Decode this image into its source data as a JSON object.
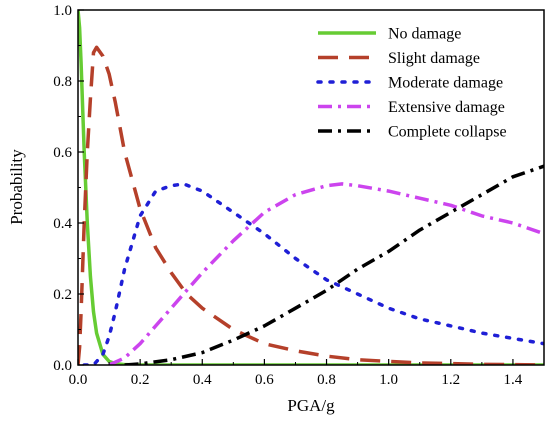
{
  "chart_data": {
    "type": "line",
    "xlabel": "PGA/g",
    "ylabel": "Probability",
    "xlim": [
      0.0,
      1.5
    ],
    "ylim": [
      0.0,
      1.0
    ],
    "xticks": [
      "0.0",
      "0.2",
      "0.4",
      "0.6",
      "0.8",
      "1.0",
      "1.2",
      "1.4"
    ],
    "xtick_values": [
      0.0,
      0.2,
      0.4,
      0.6,
      0.8,
      1.0,
      1.2,
      1.4
    ],
    "yticks": [
      "0.0",
      "0.2",
      "0.4",
      "0.6",
      "0.8",
      "1.0"
    ],
    "ytick_values": [
      0.0,
      0.2,
      0.4,
      0.6,
      0.8,
      1.0
    ],
    "grid": false,
    "legend_position": "top-right",
    "series": [
      {
        "name": "No damage",
        "color": "#66cc33",
        "style": "solid",
        "x": [
          0.0,
          0.005,
          0.01,
          0.02,
          0.03,
          0.04,
          0.05,
          0.06,
          0.08,
          0.1,
          0.12,
          0.15,
          0.2,
          0.3,
          0.5,
          1.0,
          1.5
        ],
        "y": [
          1.0,
          0.95,
          0.85,
          0.6,
          0.4,
          0.25,
          0.15,
          0.09,
          0.03,
          0.01,
          0.004,
          0.001,
          0.0,
          0.0,
          0.0,
          0.0,
          0.0
        ]
      },
      {
        "name": "Slight damage",
        "color": "#b5402a",
        "style": "long-dash",
        "x": [
          0.0,
          0.005,
          0.01,
          0.02,
          0.03,
          0.04,
          0.05,
          0.06,
          0.08,
          0.1,
          0.12,
          0.15,
          0.2,
          0.25,
          0.3,
          0.35,
          0.4,
          0.5,
          0.6,
          0.7,
          0.8,
          0.9,
          1.0,
          1.1,
          1.2,
          1.3,
          1.4,
          1.5
        ],
        "y": [
          0.0,
          0.05,
          0.15,
          0.4,
          0.6,
          0.75,
          0.88,
          0.895,
          0.87,
          0.82,
          0.74,
          0.6,
          0.44,
          0.33,
          0.26,
          0.2,
          0.16,
          0.1,
          0.06,
          0.04,
          0.025,
          0.015,
          0.01,
          0.006,
          0.004,
          0.002,
          0.001,
          0.0
        ]
      },
      {
        "name": "Moderate damage",
        "color": "#1f1fd6",
        "style": "dot",
        "x": [
          0.02,
          0.05,
          0.08,
          0.1,
          0.12,
          0.15,
          0.2,
          0.25,
          0.3,
          0.34,
          0.4,
          0.5,
          0.6,
          0.7,
          0.8,
          0.9,
          1.0,
          1.1,
          1.2,
          1.3,
          1.4,
          1.5
        ],
        "y": [
          0.0,
          0.0,
          0.03,
          0.08,
          0.15,
          0.27,
          0.42,
          0.49,
          0.505,
          0.51,
          0.49,
          0.43,
          0.37,
          0.3,
          0.24,
          0.2,
          0.16,
          0.13,
          0.11,
          0.09,
          0.075,
          0.06
        ]
      },
      {
        "name": "Extensive damage",
        "color": "#cc44ee",
        "style": "dash-dot",
        "x": [
          0.1,
          0.15,
          0.2,
          0.25,
          0.3,
          0.35,
          0.4,
          0.5,
          0.6,
          0.7,
          0.8,
          0.85,
          0.9,
          1.0,
          1.1,
          1.2,
          1.3,
          1.4,
          1.5
        ],
        "y": [
          0.0,
          0.02,
          0.06,
          0.11,
          0.16,
          0.21,
          0.26,
          0.35,
          0.43,
          0.48,
          0.505,
          0.51,
          0.505,
          0.49,
          0.47,
          0.45,
          0.42,
          0.4,
          0.37
        ]
      },
      {
        "name": "Complete collapse",
        "color": "#000000",
        "style": "dash-dot",
        "x": [
          0.15,
          0.2,
          0.3,
          0.4,
          0.5,
          0.6,
          0.7,
          0.8,
          0.9,
          1.0,
          1.1,
          1.2,
          1.3,
          1.4,
          1.5
        ],
        "y": [
          0.0,
          0.003,
          0.015,
          0.035,
          0.07,
          0.11,
          0.16,
          0.21,
          0.27,
          0.32,
          0.38,
          0.43,
          0.48,
          0.53,
          0.56
        ]
      }
    ]
  }
}
